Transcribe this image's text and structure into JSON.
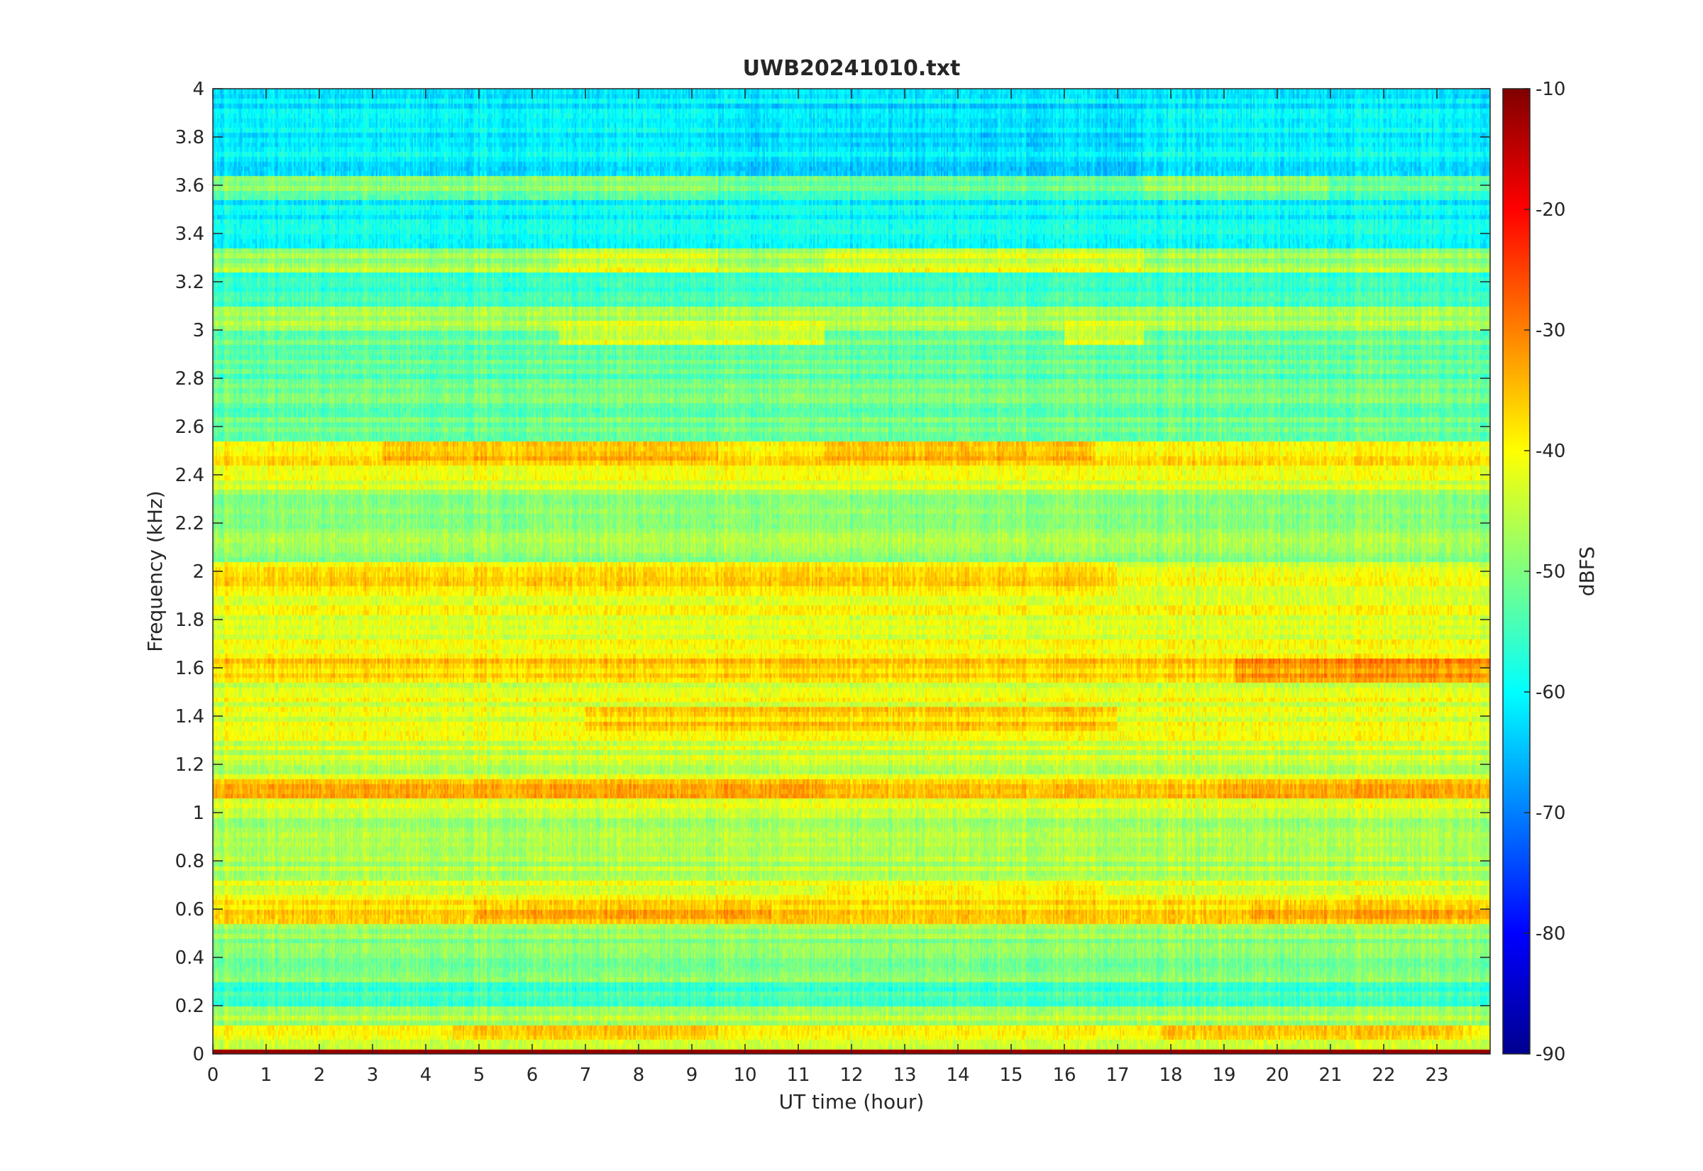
{
  "chart_data": {
    "type": "heatmap",
    "title": "UWB20241010.txt",
    "xlabel": "UT time (hour)",
    "ylabel": "Frequency (kHz)",
    "xlim": [
      0,
      24
    ],
    "ylim": [
      0,
      4
    ],
    "x_ticks": [
      0,
      1,
      2,
      3,
      4,
      5,
      6,
      7,
      8,
      9,
      10,
      11,
      12,
      13,
      14,
      15,
      16,
      17,
      18,
      19,
      20,
      21,
      22,
      23
    ],
    "y_ticks": [
      0,
      0.2,
      0.4,
      0.6,
      0.8,
      1,
      1.2,
      1.4,
      1.6,
      1.8,
      2,
      2.2,
      2.4,
      2.6,
      2.8,
      3,
      3.2,
      3.4,
      3.6,
      3.8,
      4
    ],
    "colorbar": {
      "label": "dBFS",
      "colormap": "jet",
      "range": [
        -90,
        -10
      ],
      "ticks": [
        -10,
        -20,
        -30,
        -40,
        -50,
        -60,
        -70,
        -80,
        -90
      ]
    },
    "background_level_dBFS": -48,
    "frequency_bands": [
      {
        "f_start": 0.0,
        "f_end": 0.02,
        "level": -12
      },
      {
        "f_start": 0.02,
        "f_end": 0.06,
        "level": -44
      },
      {
        "f_start": 0.06,
        "f_end": 0.12,
        "level": -40
      },
      {
        "f_start": 0.12,
        "f_end": 0.2,
        "level": -47
      },
      {
        "f_start": 0.2,
        "f_end": 0.3,
        "level": -55
      },
      {
        "f_start": 0.3,
        "f_end": 0.55,
        "level": -49
      },
      {
        "f_start": 0.55,
        "f_end": 0.65,
        "level": -38
      },
      {
        "f_start": 0.65,
        "f_end": 0.72,
        "level": -42
      },
      {
        "f_start": 0.72,
        "f_end": 1.0,
        "level": -46
      },
      {
        "f_start": 1.0,
        "f_end": 1.06,
        "level": -44
      },
      {
        "f_start": 1.06,
        "f_end": 1.14,
        "level": -36
      },
      {
        "f_start": 1.14,
        "f_end": 1.3,
        "level": -44
      },
      {
        "f_start": 1.3,
        "f_end": 1.55,
        "level": -42
      },
      {
        "f_start": 1.55,
        "f_end": 1.65,
        "level": -37
      },
      {
        "f_start": 1.65,
        "f_end": 2.05,
        "level": -42
      },
      {
        "f_start": 2.05,
        "f_end": 2.35,
        "level": -48
      },
      {
        "f_start": 2.35,
        "f_end": 2.45,
        "level": -43
      },
      {
        "f_start": 2.45,
        "f_end": 2.55,
        "level": -38
      },
      {
        "f_start": 2.55,
        "f_end": 3.0,
        "level": -52
      },
      {
        "f_start": 3.0,
        "f_end": 3.1,
        "level": -47
      },
      {
        "f_start": 3.1,
        "f_end": 3.25,
        "level": -56
      },
      {
        "f_start": 3.25,
        "f_end": 3.35,
        "level": -47
      },
      {
        "f_start": 3.35,
        "f_end": 3.55,
        "level": -60
      },
      {
        "f_start": 3.55,
        "f_end": 3.65,
        "level": -53
      },
      {
        "f_start": 3.65,
        "f_end": 4.0,
        "level": -61
      }
    ],
    "hotspots": [
      {
        "t_start": 3.2,
        "t_end": 9.5,
        "f_start": 2.47,
        "f_end": 2.55,
        "level": -34
      },
      {
        "t_start": 11.5,
        "t_end": 16.5,
        "f_start": 2.47,
        "f_end": 2.55,
        "level": -34
      },
      {
        "t_start": 19.2,
        "t_end": 24.0,
        "f_start": 1.55,
        "f_end": 1.65,
        "level": -32
      },
      {
        "t_start": 0.0,
        "t_end": 11.5,
        "f_start": 1.06,
        "f_end": 1.14,
        "level": -34
      },
      {
        "t_start": 19.0,
        "t_end": 24.0,
        "f_start": 1.06,
        "f_end": 1.14,
        "level": -34
      },
      {
        "t_start": 4.5,
        "t_end": 9.5,
        "f_start": 0.06,
        "f_end": 0.12,
        "level": -36
      },
      {
        "t_start": 17.8,
        "t_end": 23.5,
        "f_start": 0.06,
        "f_end": 0.12,
        "level": -36
      },
      {
        "t_start": 5.0,
        "t_end": 10.5,
        "f_start": 0.57,
        "f_end": 0.63,
        "level": -35
      },
      {
        "t_start": 19.5,
        "t_end": 24.0,
        "f_start": 0.57,
        "f_end": 0.63,
        "level": -35
      },
      {
        "t_start": 11.5,
        "t_end": 16.8,
        "f_start": 0.66,
        "f_end": 0.71,
        "level": -37
      },
      {
        "t_start": 7.0,
        "t_end": 17.0,
        "f_start": 1.35,
        "f_end": 1.45,
        "level": -37
      },
      {
        "t_start": 0.0,
        "t_end": 17.0,
        "f_start": 1.9,
        "f_end": 2.05,
        "level": -38
      },
      {
        "t_start": 9.5,
        "t_end": 17.5,
        "f_start": 3.65,
        "f_end": 3.95,
        "level": -63
      },
      {
        "t_start": 0.0,
        "t_end": 9.5,
        "f_start": 3.55,
        "f_end": 3.65,
        "level": -50
      },
      {
        "t_start": 17.5,
        "t_end": 21.0,
        "f_start": 3.55,
        "f_end": 3.65,
        "level": -49
      },
      {
        "t_start": 6.5,
        "t_end": 11.5,
        "f_start": 2.95,
        "f_end": 3.05,
        "level": -44
      },
      {
        "t_start": 16.0,
        "t_end": 17.5,
        "f_start": 2.95,
        "f_end": 3.05,
        "level": -44
      },
      {
        "t_start": 6.5,
        "t_end": 9.5,
        "f_start": 3.25,
        "f_end": 3.35,
        "level": -43
      },
      {
        "t_start": 11.5,
        "t_end": 17.5,
        "f_start": 3.25,
        "f_end": 3.35,
        "level": -43
      }
    ]
  }
}
